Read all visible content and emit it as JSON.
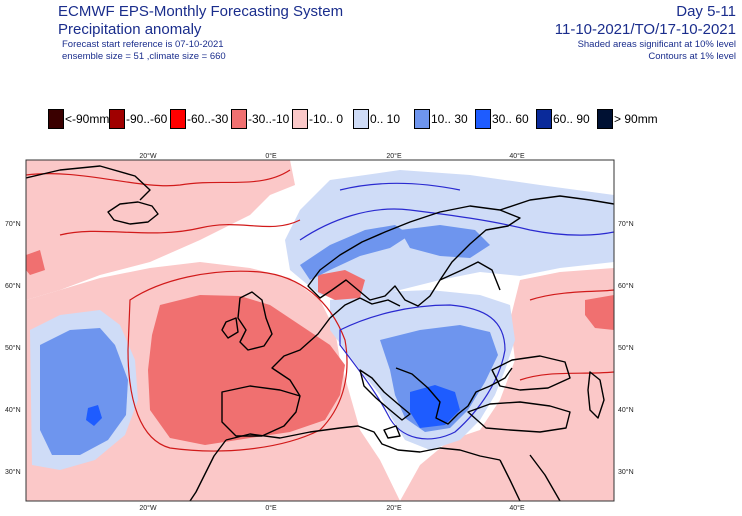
{
  "header": {
    "title": "ECMWF EPS-Monthly Forecasting System",
    "subtitle": "Precipitation anomaly",
    "forecast_start": "Forecast start reference is 07-10-2021",
    "ensemble": "ensemble size = 51  ,climate size = 660",
    "day_range": "Day 5-11",
    "date_range": "11-10-2021/TO/17-10-2021",
    "shading_note": "Shaded areas significant at 10% level",
    "contour_note": "Contours at 1% level"
  },
  "legend": [
    {
      "label": "<-90mm",
      "color": "#3a0000"
    },
    {
      "label": "-90..-60",
      "color": "#a00000"
    },
    {
      "label": "-60..-30",
      "color": "#ff0000"
    },
    {
      "label": "-30..-10",
      "color": "#f07070"
    },
    {
      "label": "-10..  0",
      "color": "#fbc8c8"
    },
    {
      "label": "0.. 10",
      "color": "#cfdcf7"
    },
    {
      "label": "10.. 30",
      "color": "#6e95ee"
    },
    {
      "label": "30.. 60",
      "color": "#1e5cff"
    },
    {
      "label": "60.. 90",
      "color": "#0a2a9a"
    },
    {
      "label": ">  90mm",
      "color": "#001133"
    }
  ],
  "map": {
    "lon_labels": [
      "20°W",
      "0°E",
      "20°E",
      "40°E"
    ],
    "lat_labels": [
      "70°N",
      "60°N",
      "50°N",
      "40°N",
      "30°N"
    ],
    "colors": {
      "light_red": "#fbc8c8",
      "mid_red": "#f07070",
      "light_blue": "#cfdcf7",
      "mid_blue": "#6e95ee",
      "strong_blue": "#1e5cff",
      "coast": "#000000",
      "contour_red": "#d11a1a",
      "contour_blue": "#2a2ad0"
    }
  }
}
